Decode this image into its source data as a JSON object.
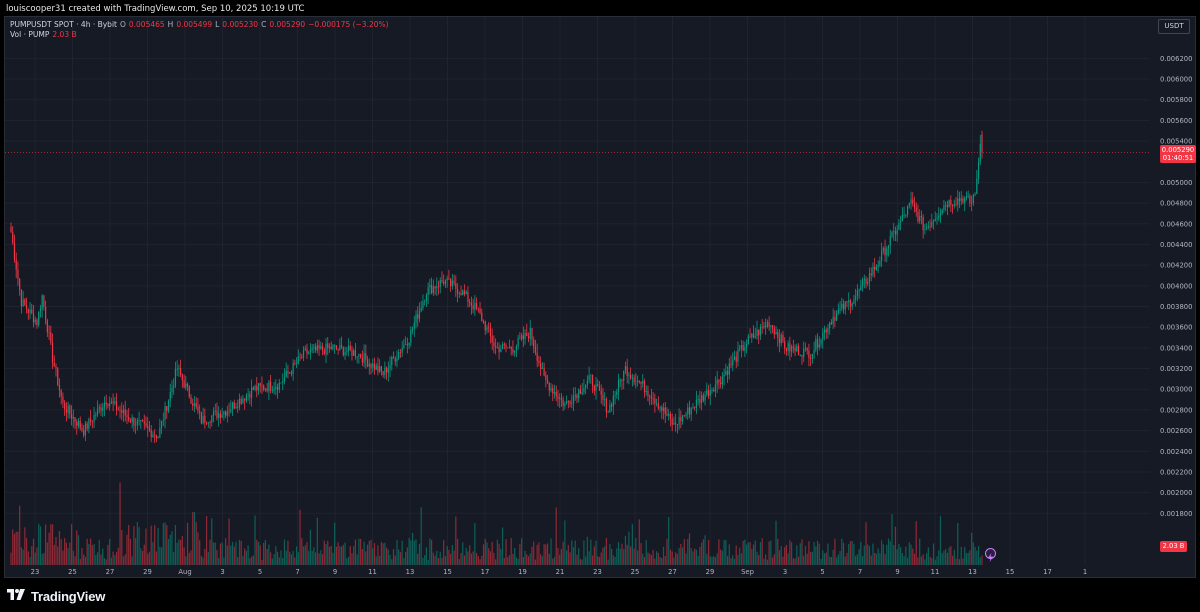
{
  "caption": "louiscooper31 created with TradingView.com, Sep 10, 2025 10:19 UTC",
  "legend": {
    "symbol": "PUMPUSDT SPOT · 4h · Bybit",
    "open_label": "O",
    "open": "0.005465",
    "high_label": "H",
    "high": "0.005499",
    "low_label": "L",
    "low": "0.005230",
    "close_label": "C",
    "close": "0.005290",
    "change": "−0.000175 (−3.20%)",
    "vol_label": "Vol · PUMP",
    "vol_value": "2.03 B"
  },
  "currency": "USDT",
  "price_tag": {
    "price": "0.005290",
    "countdown": "01:40:51"
  },
  "volume_tag": "2.03 B",
  "brand": "TradingView",
  "colors": {
    "up": "#089981",
    "down": "#f23645",
    "background": "#161a25",
    "grid": "#1f2330",
    "axis_text": "#b2b5be"
  },
  "chart_data": {
    "type": "candlestick",
    "timeframe": "4h",
    "y_ticks": [
      "0.006200",
      "0.006000",
      "0.005800",
      "0.005600",
      "0.005400",
      "0.005000",
      "0.004800",
      "0.004600",
      "0.004400",
      "0.004200",
      "0.004000",
      "0.003800",
      "0.003600",
      "0.003400",
      "0.003200",
      "0.003000",
      "0.002800",
      "0.002600",
      "0.002400",
      "0.002200",
      "0.002000",
      "0.001800"
    ],
    "x_ticks": [
      "23",
      "25",
      "27",
      "29",
      "Aug",
      "3",
      "5",
      "7",
      "9",
      "11",
      "13",
      "15",
      "17",
      "19",
      "21",
      "23",
      "25",
      "27",
      "29",
      "Sep",
      "3",
      "5",
      "7",
      "9",
      "11",
      "13",
      "15",
      "17",
      "1"
    ],
    "ylim": [
      0.0013,
      0.0066
    ],
    "last_price": 0.00529,
    "anchors": [
      [
        0,
        0.00452
      ],
      [
        6,
        0.00385
      ],
      [
        15,
        0.00365
      ],
      [
        18,
        0.0039
      ],
      [
        24,
        0.0033
      ],
      [
        30,
        0.00285
      ],
      [
        42,
        0.0026
      ],
      [
        55,
        0.0029
      ],
      [
        70,
        0.0027
      ],
      [
        85,
        0.00255
      ],
      [
        96,
        0.0032
      ],
      [
        110,
        0.0027
      ],
      [
        125,
        0.0028
      ],
      [
        140,
        0.003
      ],
      [
        155,
        0.00305
      ],
      [
        170,
        0.00335
      ],
      [
        185,
        0.0034
      ],
      [
        200,
        0.00335
      ],
      [
        215,
        0.00315
      ],
      [
        230,
        0.0035
      ],
      [
        240,
        0.00395
      ],
      [
        250,
        0.00405
      ],
      [
        260,
        0.00395
      ],
      [
        270,
        0.00375
      ],
      [
        280,
        0.0034
      ],
      [
        290,
        0.0034
      ],
      [
        300,
        0.00355
      ],
      [
        308,
        0.0031
      ],
      [
        320,
        0.00285
      ],
      [
        335,
        0.0031
      ],
      [
        345,
        0.0028
      ],
      [
        355,
        0.0032
      ],
      [
        370,
        0.00295
      ],
      [
        383,
        0.00265
      ],
      [
        398,
        0.0029
      ],
      [
        410,
        0.0031
      ],
      [
        425,
        0.00345
      ],
      [
        438,
        0.00365
      ],
      [
        448,
        0.0034
      ],
      [
        462,
        0.00335
      ],
      [
        475,
        0.0037
      ],
      [
        488,
        0.0039
      ],
      [
        500,
        0.0042
      ],
      [
        510,
        0.0045
      ],
      [
        520,
        0.0048
      ],
      [
        528,
        0.00455
      ],
      [
        540,
        0.0048
      ],
      [
        550,
        0.00485
      ],
      [
        555,
        0.0048
      ],
      [
        558,
        0.00499
      ],
      [
        560,
        0.0054
      ],
      [
        561,
        0.00529
      ]
    ]
  }
}
